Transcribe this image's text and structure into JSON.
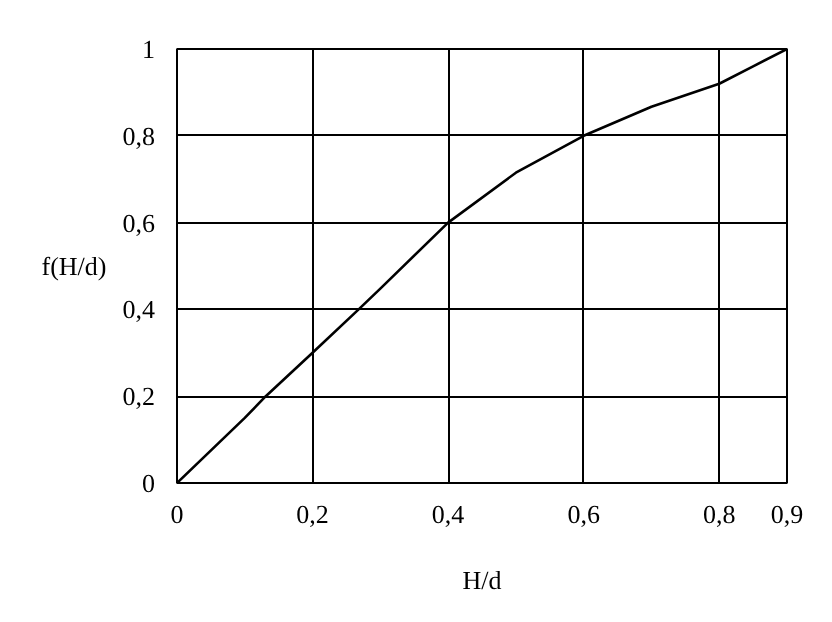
{
  "chart_data": {
    "type": "line",
    "xlabel": "H/d",
    "ylabel": "f(H/d)",
    "x": [
      0,
      0.1,
      0.131,
      0.2,
      0.268,
      0.3,
      0.4,
      0.5,
      0.6,
      0.7,
      0.8,
      0.85,
      0.9
    ],
    "series": [
      {
        "color": "#000000",
        "values": [
          0,
          0.15,
          0.2,
          0.3,
          0.4,
          0.448,
          0.6,
          0.715,
          0.8,
          0.867,
          0.92,
          0.96,
          1.0
        ]
      }
    ],
    "xlim": [
      0,
      0.9
    ],
    "ylim": [
      0,
      1
    ],
    "xticks": [
      {
        "value": 0,
        "label": "0"
      },
      {
        "value": 0.2,
        "label": "0,2"
      },
      {
        "value": 0.4,
        "label": "0,4"
      },
      {
        "value": 0.6,
        "label": "0,6"
      },
      {
        "value": 0.8,
        "label": "0,8"
      },
      {
        "value": 0.9,
        "label": "0,9"
      }
    ],
    "yticks": [
      {
        "value": 0,
        "label": "0"
      },
      {
        "value": 0.2,
        "label": "0,2"
      },
      {
        "value": 0.4,
        "label": "0,4"
      },
      {
        "value": 0.6,
        "label": "0,6"
      },
      {
        "value": 0.8,
        "label": "0,8"
      },
      {
        "value": 1,
        "label": "1"
      }
    ],
    "grid": true,
    "marker": "none",
    "line_style": "solid"
  }
}
